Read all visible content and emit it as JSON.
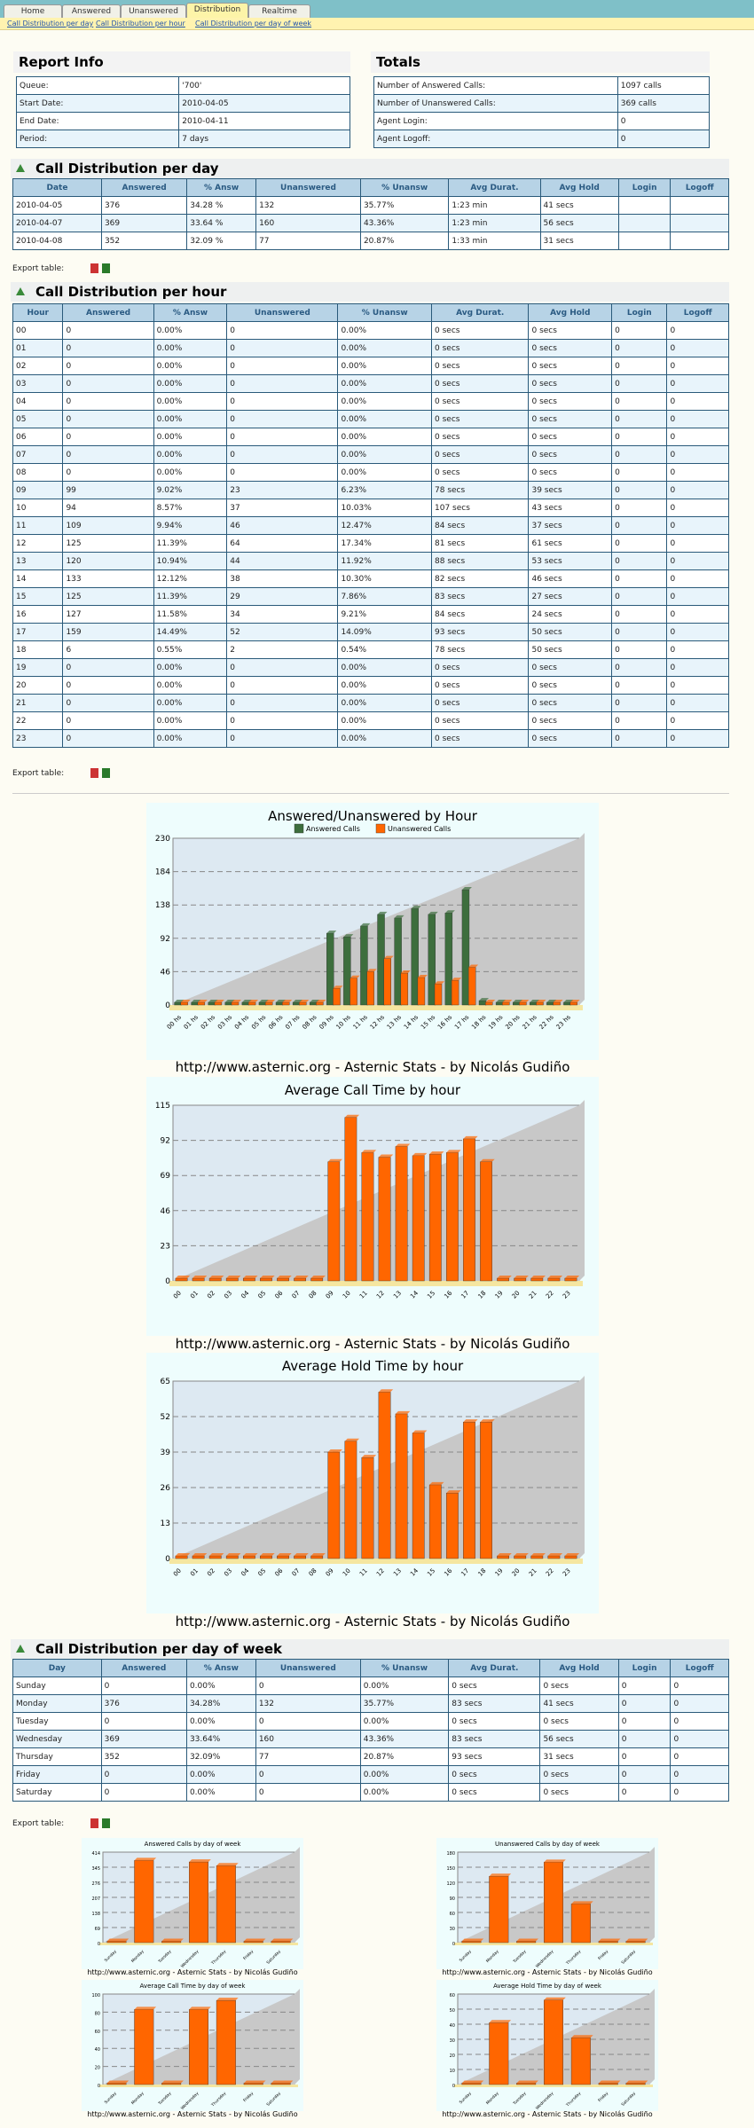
{
  "tabs": [
    "Home",
    "Answered",
    "Unanswered",
    "Distribution",
    "Realtime"
  ],
  "subtabs": [
    "Call Distribution per day",
    "Call Distribution per hour",
    "Call Distribution per day of week"
  ],
  "report_info": {
    "title": "Report Info",
    "rows": [
      [
        "Queue:",
        "'700'"
      ],
      [
        "Start Date:",
        "2010-04-05"
      ],
      [
        "End Date:",
        "2010-04-11"
      ],
      [
        "Period:",
        "7 days"
      ]
    ]
  },
  "totals": {
    "title": "Totals",
    "rows": [
      [
        "Number of Answered Calls:",
        "1097 calls"
      ],
      [
        "Number of Unanswered Calls:",
        "369 calls"
      ],
      [
        "Agent Login:",
        "0"
      ],
      [
        "Agent Logoff:",
        "0"
      ]
    ]
  },
  "per_day": {
    "title": "Call Distribution per day",
    "headers": [
      "Date",
      "Answered",
      "% Answ",
      "Unanswered",
      "% Unansw",
      "Avg Durat.",
      "Avg Hold",
      "Login",
      "Logoff"
    ],
    "rows": [
      [
        "2010-04-05",
        "376",
        "34.28 %",
        "132",
        "35.77%",
        "1:23 min",
        "41 secs",
        "",
        ""
      ],
      [
        "2010-04-07",
        "369",
        "33.64 %",
        "160",
        "43.36%",
        "1:23 min",
        "56 secs",
        "",
        ""
      ],
      [
        "2010-04-08",
        "352",
        "32.09 %",
        "77",
        "20.87%",
        "1:33 min",
        "31 secs",
        "",
        ""
      ]
    ]
  },
  "export_label": "Export table:",
  "per_hour": {
    "title": "Call Distribution per hour",
    "headers": [
      "Hour",
      "Answered",
      "% Answ",
      "Unanswered",
      "% Unansw",
      "Avg Durat.",
      "Avg Hold",
      "Login",
      "Logoff"
    ],
    "rows": [
      [
        "00",
        "0",
        "0.00%",
        "0",
        "0.00%",
        "0 secs",
        "0 secs",
        "0",
        "0"
      ],
      [
        "01",
        "0",
        "0.00%",
        "0",
        "0.00%",
        "0 secs",
        "0 secs",
        "0",
        "0"
      ],
      [
        "02",
        "0",
        "0.00%",
        "0",
        "0.00%",
        "0 secs",
        "0 secs",
        "0",
        "0"
      ],
      [
        "03",
        "0",
        "0.00%",
        "0",
        "0.00%",
        "0 secs",
        "0 secs",
        "0",
        "0"
      ],
      [
        "04",
        "0",
        "0.00%",
        "0",
        "0.00%",
        "0 secs",
        "0 secs",
        "0",
        "0"
      ],
      [
        "05",
        "0",
        "0.00%",
        "0",
        "0.00%",
        "0 secs",
        "0 secs",
        "0",
        "0"
      ],
      [
        "06",
        "0",
        "0.00%",
        "0",
        "0.00%",
        "0 secs",
        "0 secs",
        "0",
        "0"
      ],
      [
        "07",
        "0",
        "0.00%",
        "0",
        "0.00%",
        "0 secs",
        "0 secs",
        "0",
        "0"
      ],
      [
        "08",
        "0",
        "0.00%",
        "0",
        "0.00%",
        "0 secs",
        "0 secs",
        "0",
        "0"
      ],
      [
        "09",
        "99",
        "9.02%",
        "23",
        "6.23%",
        "78 secs",
        "39 secs",
        "0",
        "0"
      ],
      [
        "10",
        "94",
        "8.57%",
        "37",
        "10.03%",
        "107 secs",
        "43 secs",
        "0",
        "0"
      ],
      [
        "11",
        "109",
        "9.94%",
        "46",
        "12.47%",
        "84 secs",
        "37 secs",
        "0",
        "0"
      ],
      [
        "12",
        "125",
        "11.39%",
        "64",
        "17.34%",
        "81 secs",
        "61 secs",
        "0",
        "0"
      ],
      [
        "13",
        "120",
        "10.94%",
        "44",
        "11.92%",
        "88 secs",
        "53 secs",
        "0",
        "0"
      ],
      [
        "14",
        "133",
        "12.12%",
        "38",
        "10.30%",
        "82 secs",
        "46 secs",
        "0",
        "0"
      ],
      [
        "15",
        "125",
        "11.39%",
        "29",
        "7.86%",
        "83 secs",
        "27 secs",
        "0",
        "0"
      ],
      [
        "16",
        "127",
        "11.58%",
        "34",
        "9.21%",
        "84 secs",
        "24 secs",
        "0",
        "0"
      ],
      [
        "17",
        "159",
        "14.49%",
        "52",
        "14.09%",
        "93 secs",
        "50 secs",
        "0",
        "0"
      ],
      [
        "18",
        "6",
        "0.55%",
        "2",
        "0.54%",
        "78 secs",
        "50 secs",
        "0",
        "0"
      ],
      [
        "19",
        "0",
        "0.00%",
        "0",
        "0.00%",
        "0 secs",
        "0 secs",
        "0",
        "0"
      ],
      [
        "20",
        "0",
        "0.00%",
        "0",
        "0.00%",
        "0 secs",
        "0 secs",
        "0",
        "0"
      ],
      [
        "21",
        "0",
        "0.00%",
        "0",
        "0.00%",
        "0 secs",
        "0 secs",
        "0",
        "0"
      ],
      [
        "22",
        "0",
        "0.00%",
        "0",
        "0.00%",
        "0 secs",
        "0 secs",
        "0",
        "0"
      ],
      [
        "23",
        "0",
        "0.00%",
        "0",
        "0.00%",
        "0 secs",
        "0 secs",
        "0",
        "0"
      ]
    ]
  },
  "per_week": {
    "title": "Call Distribution per day of week",
    "headers": [
      "Day",
      "Answered",
      "% Answ",
      "Unanswered",
      "% Unansw",
      "Avg Durat.",
      "Avg Hold",
      "Login",
      "Logoff"
    ],
    "rows": [
      [
        "Sunday",
        "0",
        "0.00%",
        "0",
        "0.00%",
        "0 secs",
        "0 secs",
        "0",
        "0"
      ],
      [
        "Monday",
        "376",
        "34.28%",
        "132",
        "35.77%",
        "83 secs",
        "41 secs",
        "0",
        "0"
      ],
      [
        "Tuesday",
        "0",
        "0.00%",
        "0",
        "0.00%",
        "0 secs",
        "0 secs",
        "0",
        "0"
      ],
      [
        "Wednesday",
        "369",
        "33.64%",
        "160",
        "43.36%",
        "83 secs",
        "56 secs",
        "0",
        "0"
      ],
      [
        "Thursday",
        "352",
        "32.09%",
        "77",
        "20.87%",
        "93 secs",
        "31 secs",
        "0",
        "0"
      ],
      [
        "Friday",
        "0",
        "0.00%",
        "0",
        "0.00%",
        "0 secs",
        "0 secs",
        "0",
        "0"
      ],
      [
        "Saturday",
        "0",
        "0.00%",
        "0",
        "0.00%",
        "0 secs",
        "0 secs",
        "0",
        "0"
      ]
    ]
  },
  "credit": "http://www.asternic.org - Asternic Stats - by Nicolás Gudiño",
  "colors": {
    "answered": "#3d6e3d",
    "unanswered": "#ff6600"
  },
  "chart_data": [
    {
      "type": "bar",
      "title": "Answered/Unanswered by Hour",
      "categories": [
        "00 hs",
        "01 hs",
        "02 hs",
        "03 hs",
        "04 hs",
        "05 hs",
        "06 hs",
        "07 hs",
        "08 hs",
        "09 hs",
        "10 hs",
        "11 hs",
        "12 hs",
        "13 hs",
        "14 hs",
        "15 hs",
        "16 hs",
        "17 hs",
        "18 hs",
        "19 hs",
        "20 hs",
        "21 hs",
        "22 hs",
        "23 hs"
      ],
      "series": [
        {
          "name": "Answered Calls",
          "values": [
            0,
            0,
            0,
            0,
            0,
            0,
            0,
            0,
            0,
            99,
            94,
            109,
            125,
            120,
            133,
            125,
            127,
            159,
            6,
            0,
            0,
            0,
            0,
            0
          ]
        },
        {
          "name": "Unanswered Calls",
          "values": [
            0,
            0,
            0,
            0,
            0,
            0,
            0,
            0,
            0,
            23,
            37,
            46,
            64,
            44,
            38,
            29,
            34,
            52,
            2,
            0,
            0,
            0,
            0,
            0
          ]
        }
      ],
      "yticks": [
        "0",
        "46",
        "92",
        "138",
        "184",
        "230"
      ],
      "ylim": [
        0,
        230
      ]
    },
    {
      "type": "bar",
      "title": "Average Call Time by hour",
      "categories": [
        "00",
        "01",
        "02",
        "03",
        "04",
        "05",
        "06",
        "07",
        "08",
        "09",
        "10",
        "11",
        "12",
        "13",
        "14",
        "15",
        "16",
        "17",
        "18",
        "19",
        "20",
        "21",
        "22",
        "23"
      ],
      "series": [
        {
          "name": "Avg Call Time",
          "values": [
            0,
            0,
            0,
            0,
            0,
            0,
            0,
            0,
            0,
            78,
            107,
            84,
            81,
            88,
            82,
            83,
            84,
            93,
            78,
            0,
            0,
            0,
            0,
            0
          ]
        }
      ],
      "yticks": [
        "0",
        "23",
        "46",
        "69",
        "92",
        "115"
      ],
      "ylim": [
        0,
        115
      ]
    },
    {
      "type": "bar",
      "title": "Average Hold Time by hour",
      "categories": [
        "00",
        "01",
        "02",
        "03",
        "04",
        "05",
        "06",
        "07",
        "08",
        "09",
        "10",
        "11",
        "12",
        "13",
        "14",
        "15",
        "16",
        "17",
        "18",
        "19",
        "20",
        "21",
        "22",
        "23"
      ],
      "series": [
        {
          "name": "Avg Hold Time",
          "values": [
            0,
            0,
            0,
            0,
            0,
            0,
            0,
            0,
            0,
            39,
            43,
            37,
            61,
            53,
            46,
            27,
            24,
            50,
            50,
            0,
            0,
            0,
            0,
            0
          ]
        }
      ],
      "yticks": [
        "0",
        "13",
        "26",
        "39",
        "52",
        "65"
      ],
      "ylim": [
        0,
        65
      ]
    },
    {
      "type": "bar",
      "title": "Answered Calls by day of week",
      "categories": [
        "Sunday",
        "Monday",
        "Tuesday",
        "Wednesday",
        "Thursday",
        "Friday",
        "Saturday"
      ],
      "series": [
        {
          "name": "Answered",
          "values": [
            0,
            376,
            0,
            369,
            352,
            0,
            0
          ]
        }
      ],
      "yticks": [
        "0",
        "69",
        "138",
        "207",
        "276",
        "345",
        "414"
      ],
      "ylim": [
        0,
        414
      ]
    },
    {
      "type": "bar",
      "title": "Unanswered Calls by day of week",
      "categories": [
        "Sunday",
        "Monday",
        "Tuesday",
        "Wednesday",
        "Thursday",
        "Friday",
        "Saturday"
      ],
      "series": [
        {
          "name": "Unanswered",
          "values": [
            0,
            132,
            0,
            160,
            77,
            0,
            0
          ]
        }
      ],
      "yticks": [
        "0",
        "30",
        "60",
        "90",
        "120",
        "150",
        "180"
      ],
      "ylim": [
        0,
        180
      ]
    },
    {
      "type": "bar",
      "title": "Average Call Time by day of week",
      "categories": [
        "Sunday",
        "Monday",
        "Tuesday",
        "Wednesday",
        "Thursday",
        "Friday",
        "Saturday"
      ],
      "series": [
        {
          "name": "Avg Call Time",
          "values": [
            0,
            83,
            0,
            83,
            93,
            0,
            0
          ]
        }
      ],
      "yticks": [
        "0",
        "20",
        "40",
        "60",
        "80",
        "100"
      ],
      "ylim": [
        0,
        100
      ]
    },
    {
      "type": "bar",
      "title": "Average Hold Time by day of week",
      "categories": [
        "Sunday",
        "Monday",
        "Tuesday",
        "Wednesday",
        "Thursday",
        "Friday",
        "Saturday"
      ],
      "series": [
        {
          "name": "Avg Hold Time",
          "values": [
            0,
            41,
            0,
            56,
            31,
            0,
            0
          ]
        }
      ],
      "yticks": [
        "0",
        "10",
        "20",
        "30",
        "40",
        "50",
        "60"
      ],
      "ylim": [
        0,
        60
      ]
    }
  ]
}
